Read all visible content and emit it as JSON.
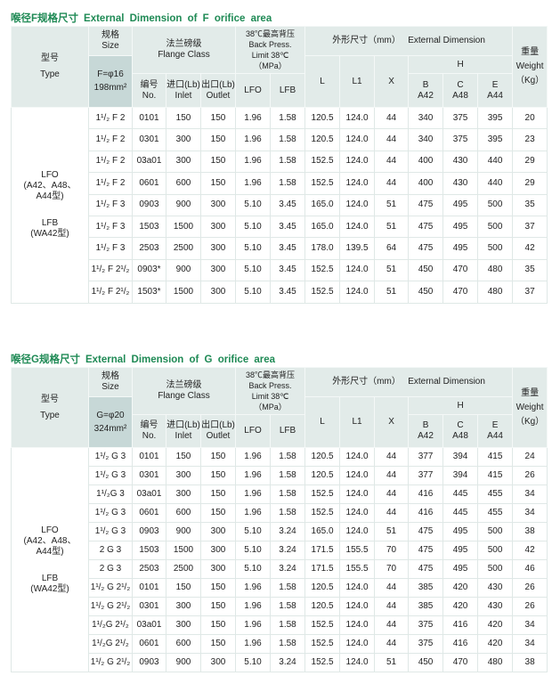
{
  "colors": {
    "title": "#1f8a55",
    "header_bg": "#e2ebe9",
    "size_bg": "#c7d8d7"
  },
  "header": {
    "type_cn": "型号",
    "type_en": "Type",
    "size_cn": "规格",
    "size_en": "Size",
    "flange_cn": "法兰磅级",
    "flange_en": "Flange Class",
    "no_cn": "编号",
    "no_en": "No.",
    "inlet_cn": "进口(Lb)",
    "inlet_en": "Inlet",
    "outlet_cn": "出口(Lb)",
    "outlet_en": "Outlet",
    "bp_cn": "38℃最高背压",
    "bp_en1": "Back Press.",
    "bp_en2": "Limit 38℃",
    "bp_unit": "（MPa）",
    "lfo": "LFO",
    "lfb": "LFB",
    "dim_cn": "外形尺寸（mm）",
    "dim_en": "External Dimension",
    "L": "L",
    "L1": "L1",
    "X": "X",
    "H": "H",
    "B": "B",
    "B2": "A42",
    "C": "C",
    "C2": "A48",
    "E": "E",
    "E2": "A44",
    "w_cn": "重量",
    "w_en": "Weight",
    "w_unit": "（Kg）"
  },
  "type_label": {
    "lfo": "LFO",
    "lfo_models": "(A42、A48、A44型)",
    "lfb": "LFB",
    "lfb_models": "(WA42型)"
  },
  "tables": [
    {
      "title_cn": "喉径F规格尺寸",
      "title_en": "External Dimension of F orifice area",
      "size_line1": "F=φ16",
      "size_line2": "198mm²",
      "rows": [
        [
          "1¹/₂ F 2",
          "0101",
          "150",
          "150",
          "1.96",
          "1.58",
          "120.5",
          "124.0",
          "44",
          "340",
          "375",
          "395",
          "20"
        ],
        [
          "1¹/₂ F 2",
          "0301",
          "300",
          "150",
          "1.96",
          "1.58",
          "120.5",
          "124.0",
          "44",
          "340",
          "375",
          "395",
          "23"
        ],
        [
          "1¹/₂ F 2",
          "03a01",
          "300",
          "150",
          "1.96",
          "1.58",
          "152.5",
          "124.0",
          "44",
          "400",
          "430",
          "440",
          "29"
        ],
        [
          "1¹/₂ F 2",
          "0601",
          "600",
          "150",
          "1.96",
          "1.58",
          "152.5",
          "124.0",
          "44",
          "400",
          "430",
          "440",
          "29"
        ],
        [
          "1¹/₂ F 3",
          "0903",
          "900",
          "300",
          "5.10",
          "3.45",
          "165.0",
          "124.0",
          "51",
          "475",
          "495",
          "500",
          "35"
        ],
        [
          "1¹/₂ F 3",
          "1503",
          "1500",
          "300",
          "5.10",
          "3.45",
          "165.0",
          "124.0",
          "51",
          "475",
          "495",
          "500",
          "37"
        ],
        [
          "1¹/₂ F 3",
          "2503",
          "2500",
          "300",
          "5.10",
          "3.45",
          "178.0",
          "139.5",
          "64",
          "475",
          "495",
          "500",
          "42"
        ],
        [
          "1¹/₂ F 2¹/₂",
          "0903*",
          "900",
          "300",
          "5.10",
          "3.45",
          "152.5",
          "124.0",
          "51",
          "450",
          "470",
          "480",
          "35"
        ],
        [
          "1¹/₂ F 2¹/₂",
          "1503*",
          "1500",
          "300",
          "5.10",
          "3.45",
          "152.5",
          "124.0",
          "51",
          "450",
          "470",
          "480",
          "37"
        ]
      ]
    },
    {
      "title_cn": "喉径G规格尺寸",
      "title_en": "External Dimension of G orifice area",
      "size_line1": "G=φ20",
      "size_line2": "324mm²",
      "rows": [
        [
          "1¹/₂ G 3",
          "0101",
          "150",
          "150",
          "1.96",
          "1.58",
          "120.5",
          "124.0",
          "44",
          "377",
          "394",
          "415",
          "24"
        ],
        [
          "1¹/₂ G 3",
          "0301",
          "300",
          "150",
          "1.96",
          "1.58",
          "120.5",
          "124.0",
          "44",
          "377",
          "394",
          "415",
          "26"
        ],
        [
          "1¹/₂G 3",
          "03a01",
          "300",
          "150",
          "1.96",
          "1.58",
          "152.5",
          "124.0",
          "44",
          "416",
          "445",
          "455",
          "34"
        ],
        [
          "1¹/₂ G 3",
          "0601",
          "600",
          "150",
          "1.96",
          "1.58",
          "152.5",
          "124.0",
          "44",
          "416",
          "445",
          "455",
          "34"
        ],
        [
          "1¹/₂ G 3",
          "0903",
          "900",
          "300",
          "5.10",
          "3.24",
          "165.0",
          "124.0",
          "51",
          "475",
          "495",
          "500",
          "38"
        ],
        [
          "2 G 3",
          "1503",
          "1500",
          "300",
          "5.10",
          "3.24",
          "171.5",
          "155.5",
          "70",
          "475",
          "495",
          "500",
          "42"
        ],
        [
          "2 G 3",
          "2503",
          "2500",
          "300",
          "5.10",
          "3.24",
          "171.5",
          "155.5",
          "70",
          "475",
          "495",
          "500",
          "46"
        ],
        [
          "1¹/₂ G 2¹/₂",
          "0101",
          "150",
          "150",
          "1.96",
          "1.58",
          "120.5",
          "124.0",
          "44",
          "385",
          "420",
          "430",
          "26"
        ],
        [
          "1¹/₂ G 2¹/₂",
          "0301",
          "300",
          "150",
          "1.96",
          "1.58",
          "120.5",
          "124.0",
          "44",
          "385",
          "420",
          "430",
          "26"
        ],
        [
          "1¹/₂G 2¹/₂",
          "03a01",
          "300",
          "150",
          "1.96",
          "1.58",
          "152.5",
          "124.0",
          "44",
          "375",
          "416",
          "420",
          "34"
        ],
        [
          "1¹/₂G 2¹/₂",
          "0601",
          "600",
          "150",
          "1.96",
          "1.58",
          "152.5",
          "124.0",
          "44",
          "375",
          "416",
          "420",
          "34"
        ],
        [
          "1¹/₂ G 2¹/₂",
          "0903",
          "900",
          "300",
          "5.10",
          "3.24",
          "152.5",
          "124.0",
          "51",
          "450",
          "470",
          "480",
          "38"
        ]
      ]
    }
  ]
}
